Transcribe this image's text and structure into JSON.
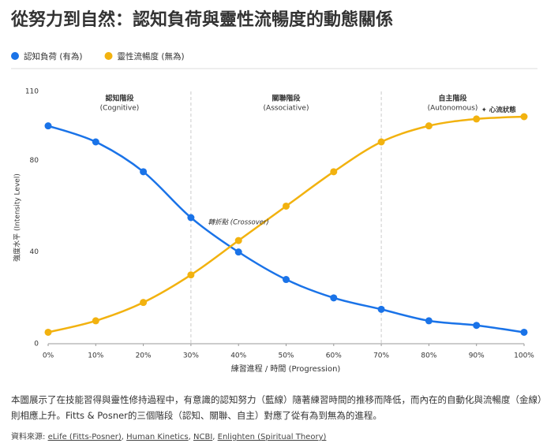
{
  "chart_data": {
    "type": "line",
    "title": "從努力到自然：認知負荷與靈性流暢度的動態關係",
    "x_label": "練習進程 / 時間 (Progression)",
    "y_label": "強度水平 (Intensity Level)",
    "x": [
      0,
      10,
      20,
      30,
      40,
      50,
      60,
      70,
      80,
      90,
      100
    ],
    "series": [
      {
        "name": "認知負荷 (有為)",
        "color": "#1a73e8",
        "values": [
          95,
          88,
          75,
          55,
          40,
          28,
          20,
          15,
          10,
          8,
          5
        ]
      },
      {
        "name": "靈性流暢度 (無為)",
        "color": "#f2b20f",
        "values": [
          5,
          10,
          18,
          30,
          45,
          60,
          75,
          88,
          95,
          98,
          99
        ]
      }
    ],
    "xlim": [
      0,
      100
    ],
    "xticks": [
      {
        "value": 0,
        "label": "0%"
      },
      {
        "value": 10,
        "label": "10%"
      },
      {
        "value": 20,
        "label": "20%"
      },
      {
        "value": 30,
        "label": "30%"
      },
      {
        "value": 40,
        "label": "40%"
      },
      {
        "value": 50,
        "label": "50%"
      },
      {
        "value": 60,
        "label": "60%"
      },
      {
        "value": 70,
        "label": "70%"
      },
      {
        "value": 80,
        "label": "80%"
      },
      {
        "value": 90,
        "label": "90%"
      },
      {
        "value": 100,
        "label": "100%"
      }
    ],
    "ylim": [
      0,
      110
    ],
    "yticks": [
      0,
      40,
      80,
      110
    ],
    "grid": false,
    "legend": "top-left",
    "phase_boundaries": [
      30,
      70
    ],
    "phases": [
      {
        "name": "認知階段",
        "sub": "(Cognitive)",
        "x": 15
      },
      {
        "name": "關聯階段",
        "sub": "(Associative)",
        "x": 50
      },
      {
        "name": "自主階段",
        "sub": "(Autonomous)",
        "x": 85
      }
    ],
    "annotations": [
      {
        "text": "轉折點 (Crossover)",
        "x": 40,
        "y": 53
      },
      {
        "text": "✦ 心流狀態",
        "x": 91,
        "y": 102
      }
    ]
  },
  "description": "本圖展示了在技能習得與靈性修持過程中，有意識的認知努力（藍線）隨著練習時間的推移而降低，而內在的自動化與流暢度（金線）則相應上升。Fitts & Posner的三個階段（認知、關聯、自主）對應了從有為到無為的進程。",
  "sources": {
    "label": "資料來源:",
    "separator": ", ",
    "links": [
      "eLife (Fitts-Posner)",
      "Human Kinetics",
      "NCBI",
      "Enlighten (Spiritual Theory)"
    ]
  }
}
